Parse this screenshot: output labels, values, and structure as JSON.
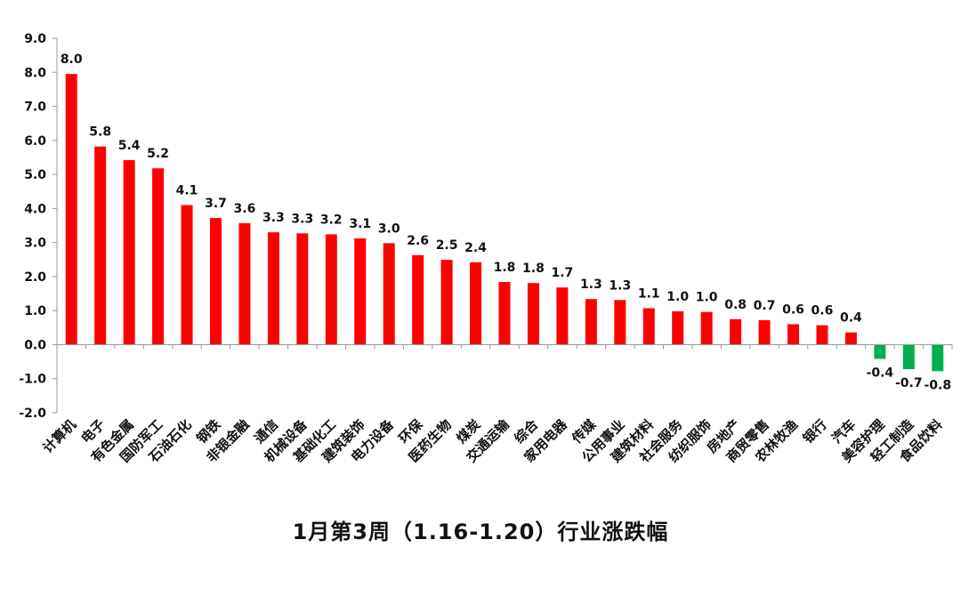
{
  "chart_data": {
    "type": "bar",
    "title": "1月第3周（1.16-1.20）行业涨跌幅",
    "xlabel": "",
    "ylabel": "",
    "ylim": [
      -2.0,
      9.0
    ],
    "yticks": [
      "9.0",
      "8.0",
      "7.0",
      "6.0",
      "5.0",
      "4.0",
      "3.0",
      "2.0",
      "1.0",
      "0.0",
      "-1.0",
      "-2.0"
    ],
    "ytick_values": [
      9,
      8,
      7,
      6,
      5,
      4,
      3,
      2,
      1,
      0,
      -1,
      -2
    ],
    "grid": false,
    "legend": "none",
    "colors": {
      "positive": "#ff0000",
      "negative": "#00b050"
    },
    "categories": [
      "计算机",
      "电子",
      "有色金属",
      "国防军工",
      "石油石化",
      "钢铁",
      "非银金融",
      "通信",
      "机械设备",
      "基础化工",
      "建筑装饰",
      "电力设备",
      "环保",
      "医药生物",
      "煤炭",
      "交通运输",
      "综合",
      "家用电器",
      "传媒",
      "公用事业",
      "建筑材料",
      "社会服务",
      "纺织服饰",
      "房地产",
      "商贸零售",
      "农林牧渔",
      "银行",
      "汽车",
      "美容护理",
      "轻工制造",
      "食品饮料"
    ],
    "values": [
      7.95,
      5.82,
      5.42,
      5.18,
      4.1,
      3.72,
      3.57,
      3.3,
      3.27,
      3.24,
      3.12,
      2.98,
      2.63,
      2.49,
      2.42,
      1.84,
      1.81,
      1.68,
      1.34,
      1.31,
      1.07,
      0.98,
      0.96,
      0.75,
      0.72,
      0.6,
      0.57,
      0.36,
      -0.42,
      -0.72,
      -0.78
    ],
    "data_labels": [
      "8.0",
      "5.8",
      "5.4",
      "5.2",
      "4.1",
      "3.7",
      "3.6",
      "3.3",
      "3.3",
      "3.2",
      "3.1",
      "3.0",
      "2.6",
      "2.5",
      "2.4",
      "1.8",
      "1.8",
      "1.7",
      "1.3",
      "1.3",
      "1.1",
      "1.0",
      "1.0",
      "0.8",
      "0.7",
      "0.6",
      "0.6",
      "0.4",
      "-0.4",
      "-0.7",
      "-0.8"
    ]
  }
}
